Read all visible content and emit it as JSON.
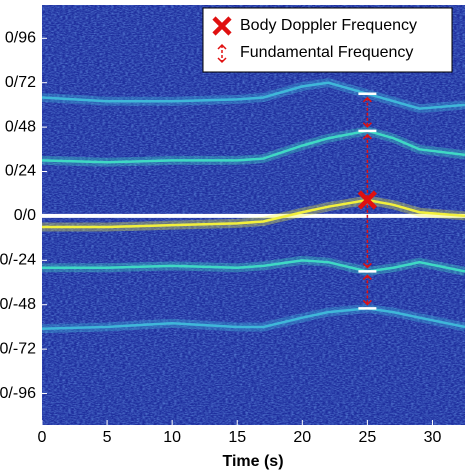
{
  "chart_data": {
    "type": "line",
    "xlabel": "Time (s)",
    "xlim": [
      0,
      32.5
    ],
    "xticks": [
      0,
      5,
      10,
      15,
      20,
      25,
      30
    ],
    "ylim": [
      -113,
      114
    ],
    "yticks": [
      {
        "value": 96,
        "label": "0/96"
      },
      {
        "value": 72,
        "label": "0/72"
      },
      {
        "value": 48,
        "label": "0/48"
      },
      {
        "value": 24,
        "label": "0/24"
      },
      {
        "value": 0,
        "label": "0/0"
      },
      {
        "value": -24,
        "label": "0/-24"
      },
      {
        "value": -48,
        "label": "0/-48"
      },
      {
        "value": -72,
        "label": "0/-72"
      },
      {
        "value": -96,
        "label": "0/-96"
      }
    ],
    "x": [
      0,
      5,
      10,
      15,
      17,
      20,
      22,
      25,
      27,
      29,
      32.5
    ],
    "series": [
      {
        "color": "#f2f03c",
        "values": [
          -6,
          -6,
          -5,
          -4,
          -3,
          2,
          5,
          8.6,
          6,
          2,
          0
        ]
      },
      {
        "color": "#3fd9c4",
        "values": [
          30,
          29,
          30,
          30,
          31,
          38,
          42,
          46,
          42,
          36,
          33
        ]
      },
      {
        "color": "#3fb7d9",
        "values": [
          64,
          62,
          62,
          63,
          64,
          70,
          72,
          66,
          62,
          58,
          60
        ]
      },
      {
        "color": "#3fd9c4",
        "values": [
          -28,
          -28,
          -27,
          -28,
          -27,
          -24,
          -25,
          -30,
          -28,
          -25,
          -30
        ]
      },
      {
        "color": "#3fb7d9",
        "values": [
          -61,
          -60,
          -58,
          -60,
          -60,
          -55,
          -52,
          -50,
          -52,
          -55,
          -60
        ]
      }
    ],
    "markers": {
      "x": 25,
      "body": 8.6,
      "fundamental": [
        66,
        46,
        -30,
        -50
      ]
    },
    "legend": [
      "Body Doppler Frequency",
      "Fundamental Frequency"
    ],
    "marker_color": "#e01010"
  }
}
